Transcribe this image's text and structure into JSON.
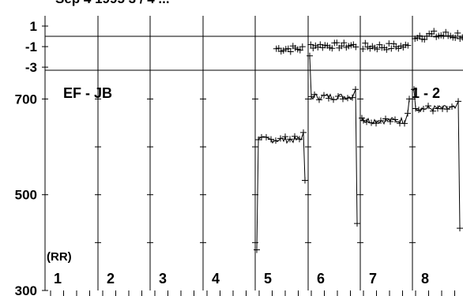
{
  "header_text": "Sep 4 1995 3 / 4 ...",
  "panel_label": "EF - JB",
  "corner_label": "1 - 2",
  "rr_label": "(RR)",
  "segment_labels": [
    "1",
    "2",
    "3",
    "4",
    "5",
    "6",
    "7",
    "8"
  ],
  "chart_data": [
    {
      "type": "scatter",
      "panel": "top",
      "ylim": [
        -3.3,
        2
      ],
      "yticks": [
        "1",
        "-1",
        "-3"
      ],
      "reference_line": 0,
      "segments": [
        {
          "segment": "5",
          "x_range": [
            0.4,
            0.92
          ],
          "y_mean": -1.2,
          "y_spread": 0.35
        },
        {
          "segment": "6",
          "x_range": [
            0.05,
            0.92
          ],
          "y_mean": -0.9,
          "y_spread": 0.3
        },
        {
          "segment": "7",
          "x_range": [
            0.05,
            0.95
          ],
          "y_mean": -1.0,
          "y_spread": 0.35
        },
        {
          "segment": "8",
          "x_range": [
            0.05,
            0.99
          ],
          "y_mean": 0.1,
          "y_spread": 0.45
        }
      ]
    },
    {
      "type": "line",
      "panel": "bottom",
      "ylim": [
        300,
        760
      ],
      "yticks": [
        "700",
        "500",
        "300"
      ],
      "segments": [
        {
          "segment": "5",
          "level": 615,
          "start_dip": 385,
          "end_value": 530
        },
        {
          "segment": "6",
          "level": 705,
          "start_dip": 790,
          "end_value": 440
        },
        {
          "segment": "7",
          "level": 655,
          "start_dip": 660,
          "end_value": 700
        },
        {
          "segment": "8",
          "level": 680,
          "start_dip": 720,
          "end_value": 430
        }
      ]
    }
  ]
}
